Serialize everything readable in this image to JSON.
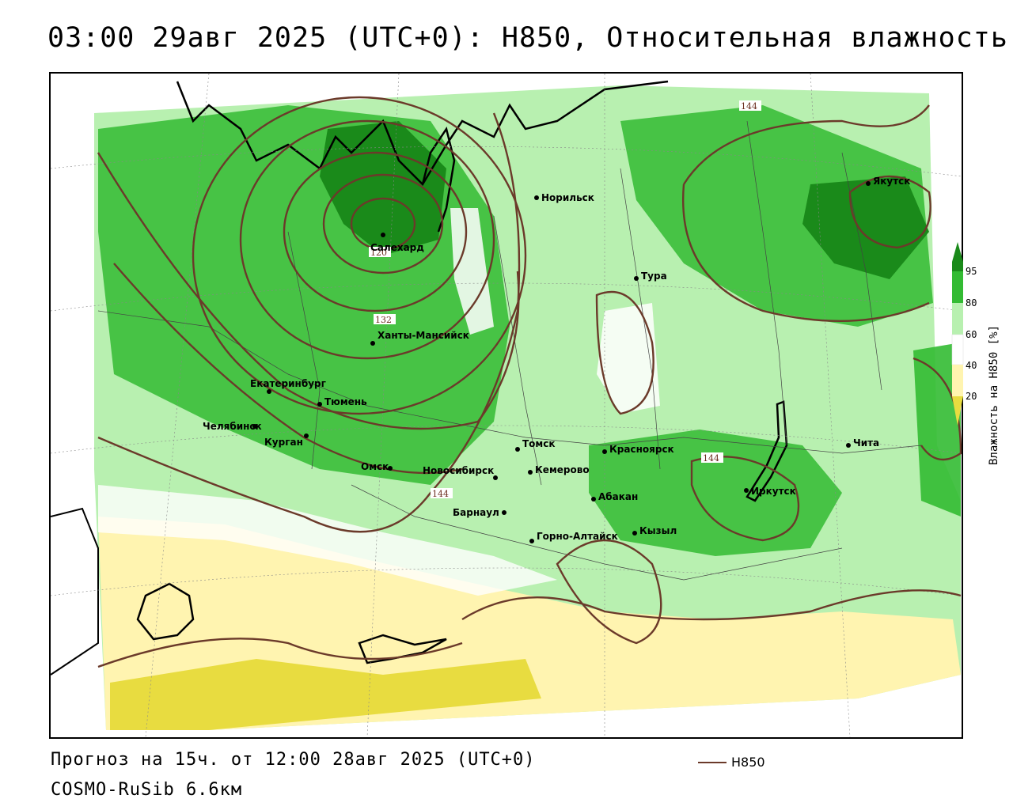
{
  "header": {
    "title": "03:00 29авг 2025 (UTC+0): H850, Относительная влажность"
  },
  "map": {
    "cities": [
      {
        "name": "Салехард"
      },
      {
        "name": "Норильск"
      },
      {
        "name": "Якутск"
      },
      {
        "name": "Тура"
      },
      {
        "name": "Ханты-Мансийск"
      },
      {
        "name": "Екатеринбург"
      },
      {
        "name": "Тюмень"
      },
      {
        "name": "Челябинск"
      },
      {
        "name": "Курган"
      },
      {
        "name": "Омск"
      },
      {
        "name": "Новосибирск"
      },
      {
        "name": "Томск"
      },
      {
        "name": "Кемерово"
      },
      {
        "name": "Красноярск"
      },
      {
        "name": "Барнаул"
      },
      {
        "name": "Абакан"
      },
      {
        "name": "Горно-Алтайск"
      },
      {
        "name": "Кызыл"
      },
      {
        "name": "Иркутск"
      },
      {
        "name": "Чита"
      }
    ],
    "contour_labels": [
      "120",
      "132",
      "144",
      "144",
      "144"
    ]
  },
  "legend": {
    "title": "Влажность на H850 [%]",
    "ticks": [
      "95",
      "80",
      "60",
      "40",
      "20"
    ],
    "colors": {
      "c95": "#1a8a1a",
      "c80": "#33bb33",
      "c60": "#b8f0b0",
      "c40": "#ffffff",
      "c20": "#fff4b0",
      "c0": "#e8dc40"
    }
  },
  "footer": {
    "forecast": "Прогноз на 15ч. от 12:00 28авг 2025 (UTC+0)",
    "model": "COSMO-RuSib 6.6км",
    "line_legend": "H850"
  }
}
